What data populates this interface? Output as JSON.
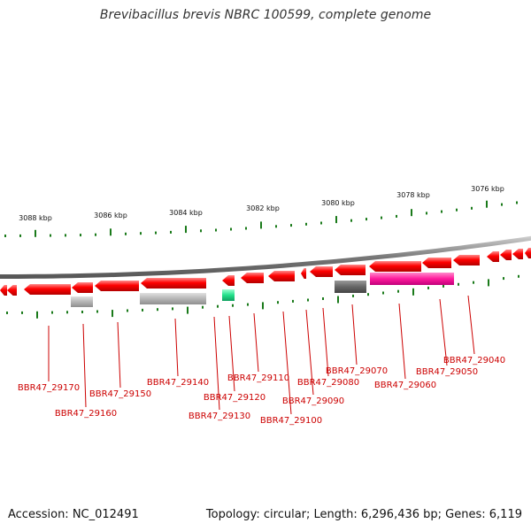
{
  "header": {
    "title": "Brevibacillus brevis NBRC 100599, complete genome"
  },
  "footer": {
    "accession": "Accession: NC_012491",
    "topology": "Topology: circular; Length: 6,296,436 bp; Genes: 6,119"
  },
  "colors": {
    "label": "#cc0000",
    "cds_forward": "#ff0000",
    "tick": "#1a7a1a",
    "backbone": "#8a8a8a",
    "rrna": "#ff3399",
    "trna": "#22dd88",
    "pseudo_dark": "#666666",
    "pseudo_light": "#bbbbbb"
  },
  "position_ticks": [
    "3088 kbp",
    "3086 kbp",
    "3084 kbp",
    "3082 kbp",
    "3080 kbp",
    "3078 kbp",
    "3076 kbp"
  ],
  "gene_labels": [
    "BBR47_29170",
    "BBR47_29160",
    "BBR47_29150",
    "BBR47_29140",
    "BBR47_29130",
    "BBR47_29120",
    "BBR47_29110",
    "BBR47_29100",
    "BBR47_29090",
    "BBR47_29080",
    "BBR47_29070",
    "BBR47_29060",
    "BBR47_29050",
    "BBR47_29040"
  ]
}
